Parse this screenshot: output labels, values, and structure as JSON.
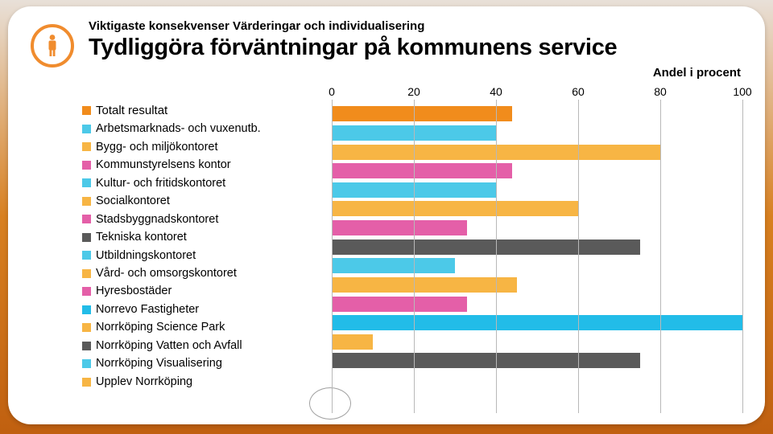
{
  "header": {
    "subtitle": "Viktigaste konsekvenser Värderingar och individualisering",
    "title": "Tydliggöra förväntningar på kommunens service",
    "unit_label": "Andel i procent"
  },
  "icon": {
    "color": "#f08c2e"
  },
  "chart": {
    "type": "bar-horizontal",
    "xlim": [
      0,
      100
    ],
    "ticks": [
      0,
      20,
      40,
      60,
      80,
      100
    ],
    "grid_color": "#b8b8b8",
    "background_color": "#ffffff",
    "bar_height_pct": 80,
    "series": [
      {
        "label": "Totalt resultat",
        "value": 44,
        "color": "#f18c1c"
      },
      {
        "label": "Arbetsmarknads- och vuxenutb.",
        "value": 40,
        "color": "#4cc9e8"
      },
      {
        "label": "Bygg- och miljökontoret",
        "value": 80,
        "color": "#f7b544"
      },
      {
        "label": "Kommunstyrelsens kontor",
        "value": 44,
        "color": "#e45fa8"
      },
      {
        "label": "Kultur- och fritidskontoret",
        "value": 40,
        "color": "#4cc9e8"
      },
      {
        "label": "Socialkontoret",
        "value": 60,
        "color": "#f7b544"
      },
      {
        "label": "Stadsbyggnadskontoret",
        "value": 33,
        "color": "#e45fa8"
      },
      {
        "label": "Tekniska kontoret",
        "value": 75,
        "color": "#5a5a5a"
      },
      {
        "label": "Utbildningskontoret",
        "value": 30,
        "color": "#4cc9e8"
      },
      {
        "label": "Vård- och omsorgskontoret",
        "value": 45,
        "color": "#f7b544"
      },
      {
        "label": "Hyresbostäder",
        "value": 33,
        "color": "#e45fa8"
      },
      {
        "label": "Norrevo Fastigheter",
        "value": 100,
        "color": "#22bce8"
      },
      {
        "label": "Norrköping Science Park",
        "value": 10,
        "color": "#f7b544"
      },
      {
        "label": "Norrköping Vatten och Avfall",
        "value": 75,
        "color": "#5a5a5a"
      },
      {
        "label": "Norrköping Visualisering",
        "value": 0,
        "color": "#4cc9e8"
      },
      {
        "label": "Upplev Norrköping",
        "value": 0,
        "color": "#f7b544"
      }
    ]
  },
  "typography": {
    "title_fontsize": 29,
    "subtitle_fontsize": 15,
    "legend_fontsize": 14.5,
    "tick_fontsize": 14,
    "font_family": "Arial"
  }
}
